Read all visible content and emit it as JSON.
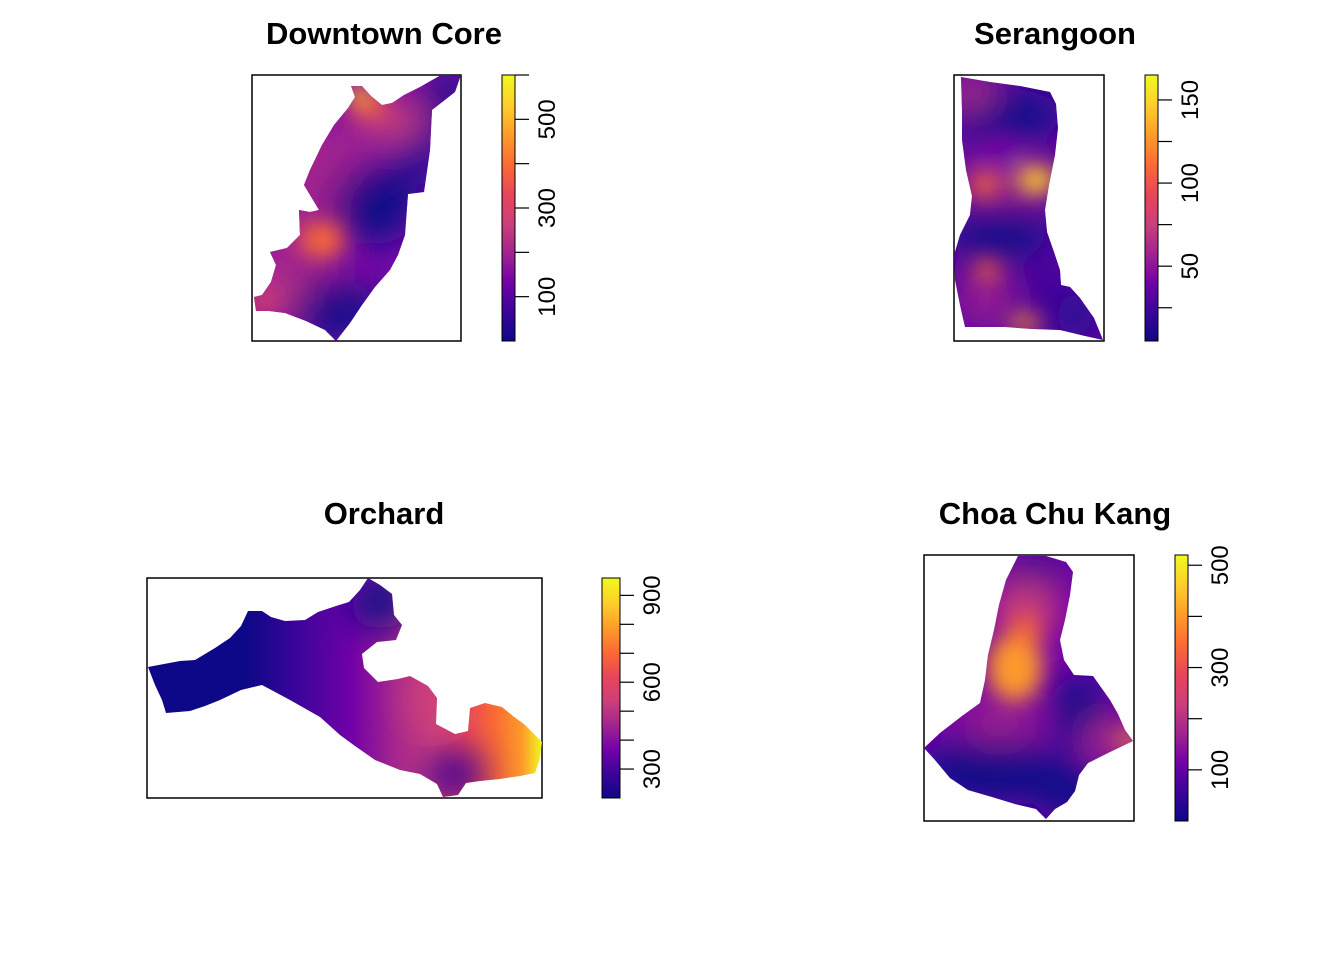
{
  "palette": [
    "#0d0887",
    "#3b049a",
    "#7201a8",
    "#a2248f",
    "#cc3f7a",
    "#e8455a",
    "#fb6a34",
    "#fe9a29",
    "#fecc2a",
    "#f0f921"
  ],
  "panels": [
    {
      "title": "Downtown Core",
      "legend": {
        "min": 0,
        "max": 600,
        "ticks": [
          100,
          300,
          500
        ],
        "minor_ticks": [
          100,
          200,
          300,
          400,
          500,
          600
        ]
      }
    },
    {
      "title": "Serangoon",
      "legend": {
        "min": 5,
        "max": 165,
        "ticks": [
          50,
          100,
          150
        ],
        "minor_ticks": [
          25,
          50,
          75,
          100,
          125,
          150
        ]
      }
    },
    {
      "title": "Orchard",
      "legend": {
        "min": 200,
        "max": 960,
        "ticks": [
          300,
          600,
          900
        ],
        "minor_ticks": [
          300,
          400,
          500,
          600,
          700,
          800,
          900
        ]
      }
    },
    {
      "title": "Choa Chu Kang",
      "legend": {
        "min": 0,
        "max": 520,
        "ticks": [
          100,
          300,
          500
        ],
        "minor_ticks": [
          100,
          200,
          300,
          400,
          500
        ]
      }
    }
  ]
}
